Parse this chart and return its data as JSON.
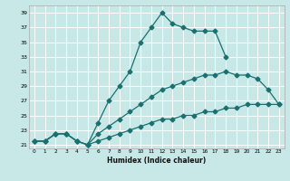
{
  "xlabel": "Humidex (Indice chaleur)",
  "bg_color": "#c8e8e8",
  "line_color": "#1a7070",
  "grid_color": "#ffffff",
  "xlim": [
    -0.5,
    23.5
  ],
  "ylim": [
    20.5,
    40
  ],
  "yticks": [
    21,
    23,
    25,
    27,
    29,
    31,
    33,
    35,
    37,
    39
  ],
  "xticks": [
    0,
    1,
    2,
    3,
    4,
    5,
    6,
    7,
    8,
    9,
    10,
    11,
    12,
    13,
    14,
    15,
    16,
    17,
    18,
    19,
    20,
    21,
    22,
    23
  ],
  "line1_x": [
    0,
    1,
    2,
    3,
    4,
    5,
    6,
    7,
    8,
    9,
    10,
    11,
    12,
    13,
    14,
    15,
    16,
    17,
    18
  ],
  "line1_y": [
    21.5,
    21.5,
    22.5,
    22.5,
    21.5,
    21.0,
    24.0,
    27.0,
    29.0,
    31.0,
    35.0,
    37.0,
    39.0,
    37.5,
    37.0,
    36.5,
    36.5,
    36.5,
    33.0
  ],
  "line2_x": [
    0,
    1,
    2,
    3,
    4,
    5,
    6,
    7,
    8,
    9,
    10,
    11,
    12,
    13,
    14,
    15,
    16,
    17,
    18,
    19,
    20,
    21,
    22,
    23
  ],
  "line2_y": [
    21.5,
    21.5,
    22.5,
    22.5,
    21.5,
    21.0,
    22.5,
    23.5,
    24.5,
    25.5,
    26.5,
    27.5,
    28.5,
    29.0,
    29.5,
    30.0,
    30.5,
    30.5,
    31.0,
    30.5,
    30.5,
    30.0,
    28.5,
    26.5
  ],
  "line3_x": [
    0,
    1,
    2,
    3,
    4,
    5,
    6,
    7,
    8,
    9,
    10,
    11,
    12,
    13,
    14,
    15,
    16,
    17,
    18,
    19,
    20,
    21,
    22,
    23
  ],
  "line3_y": [
    21.5,
    21.5,
    22.5,
    22.5,
    21.5,
    21.0,
    21.5,
    22.0,
    22.5,
    23.0,
    23.5,
    24.0,
    24.5,
    24.5,
    25.0,
    25.0,
    25.5,
    25.5,
    26.0,
    26.0,
    26.5,
    26.5,
    26.5,
    26.5
  ]
}
